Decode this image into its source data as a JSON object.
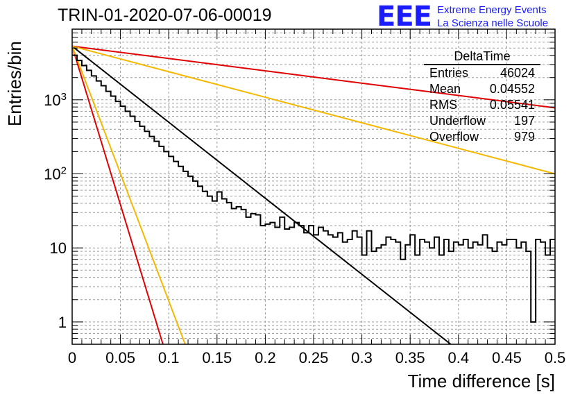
{
  "header": {
    "title": "TRIN-01-2020-07-06-00019",
    "logo_mark": "EEE",
    "logo_line1": "Extreme Energy Events",
    "logo_line2": "La Scienza nelle Scuole"
  },
  "stats": {
    "title": "DeltaTime",
    "rows": [
      {
        "label": "Entries",
        "value": "46024"
      },
      {
        "label": "Mean",
        "value": "0.04552"
      },
      {
        "label": "RMS",
        "value": "0.05541"
      },
      {
        "label": "Underflow",
        "value": "197"
      },
      {
        "label": "Overflow",
        "value": "979"
      }
    ]
  },
  "chart_data": {
    "type": "line",
    "xlabel": "Time difference [s]",
    "ylabel": "Entries/bin",
    "xlim": [
      0,
      0.5
    ],
    "ylim": [
      0.5,
      9000
    ],
    "yscale": "log",
    "grid": true,
    "xticks": [
      "0",
      "0.05",
      "0.1",
      "0.15",
      "0.2",
      "0.25",
      "0.3",
      "0.35",
      "0.4",
      "0.45",
      "0.5"
    ],
    "yticks": [
      "1",
      "10",
      "10^2",
      "10^3"
    ],
    "histogram": {
      "bin_width": 0.005,
      "color": "#000000",
      "values": [
        4000,
        3400,
        2900,
        2500,
        2100,
        1800,
        1550,
        1300,
        1120,
        950,
        820,
        700,
        600,
        510,
        440,
        375,
        320,
        275,
        235,
        200,
        172,
        147,
        126,
        108,
        93,
        80,
        68,
        58,
        50,
        43,
        57,
        46,
        41,
        34,
        36,
        33,
        26,
        29,
        28,
        20,
        21,
        22,
        19,
        26,
        18,
        19,
        22,
        20,
        16,
        20,
        15,
        19,
        17,
        15,
        14,
        16,
        12,
        13,
        17,
        14,
        8,
        17,
        9,
        10,
        11,
        14,
        13,
        12,
        7,
        11,
        15,
        8,
        13,
        12,
        10,
        14,
        8,
        13,
        9,
        12,
        11,
        13,
        10,
        12,
        11,
        15,
        10,
        9,
        12,
        11,
        13,
        13,
        10,
        12,
        9,
        1,
        13,
        12,
        8,
        13
      ]
    },
    "series": [
      {
        "color": "#000000",
        "x": [
          0.0,
          0.392
        ],
        "y": [
          5300,
          0.5
        ]
      },
      {
        "color": "#e00000",
        "x": [
          0.0,
          0.5
        ],
        "y": [
          5300,
          780
        ]
      },
      {
        "color": "#e00000",
        "x": [
          0.0,
          0.094
        ],
        "y": [
          5300,
          0.5
        ]
      },
      {
        "color": "#f5b800",
        "x": [
          0.0,
          0.5
        ],
        "y": [
          5300,
          100
        ]
      },
      {
        "color": "#f5b800",
        "x": [
          0.0,
          0.117
        ],
        "y": [
          5300,
          0.5
        ]
      }
    ]
  }
}
